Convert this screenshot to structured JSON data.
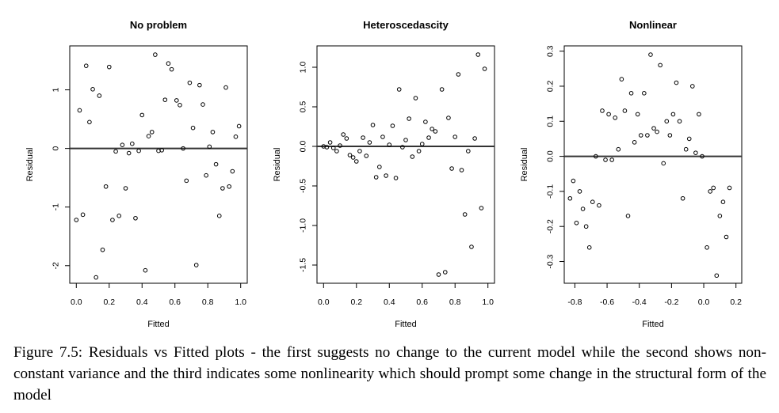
{
  "caption": "Figure 7.5: Residuals vs Fitted plots - the first suggests no change to the current model while the second shows non-constant variance and the third indicates some nonlinearity which should prompt some change in the structural form of the model",
  "chart_data": [
    {
      "type": "scatter",
      "title": "No problem",
      "xlabel": "Fitted",
      "ylabel": "Residual",
      "xlim": [
        -0.04,
        1.04
      ],
      "ylim": [
        -2.3,
        1.75
      ],
      "xticks": [
        0.0,
        0.2,
        0.4,
        0.6,
        0.8,
        1.0
      ],
      "xtick_labels": [
        "0.0",
        "0.2",
        "0.4",
        "0.6",
        "0.8",
        "1.0"
      ],
      "yticks": [
        -2,
        -1,
        0,
        1
      ],
      "ytick_labels": [
        "-2",
        "-1",
        "0",
        "1"
      ],
      "hline": 0,
      "points": [
        [
          0.0,
          -1.22
        ],
        [
          0.02,
          0.65
        ],
        [
          0.04,
          -1.13
        ],
        [
          0.06,
          1.41
        ],
        [
          0.08,
          0.45
        ],
        [
          0.1,
          1.01
        ],
        [
          0.12,
          -2.2
        ],
        [
          0.14,
          0.9
        ],
        [
          0.16,
          -1.73
        ],
        [
          0.18,
          -0.65
        ],
        [
          0.2,
          1.39
        ],
        [
          0.22,
          -1.22
        ],
        [
          0.24,
          -0.05
        ],
        [
          0.26,
          -1.15
        ],
        [
          0.28,
          0.06
        ],
        [
          0.3,
          -0.68
        ],
        [
          0.32,
          -0.08
        ],
        [
          0.34,
          0.08
        ],
        [
          0.36,
          -1.19
        ],
        [
          0.38,
          -0.04
        ],
        [
          0.4,
          0.57
        ],
        [
          0.42,
          -2.08
        ],
        [
          0.44,
          0.21
        ],
        [
          0.46,
          0.28
        ],
        [
          0.48,
          1.6
        ],
        [
          0.5,
          -0.04
        ],
        [
          0.52,
          -0.03
        ],
        [
          0.54,
          0.83
        ],
        [
          0.56,
          1.45
        ],
        [
          0.58,
          1.35
        ],
        [
          0.61,
          0.82
        ],
        [
          0.63,
          0.74
        ],
        [
          0.65,
          0.0
        ],
        [
          0.67,
          -0.55
        ],
        [
          0.69,
          1.12
        ],
        [
          0.71,
          0.35
        ],
        [
          0.73,
          -1.99
        ],
        [
          0.75,
          1.08
        ],
        [
          0.77,
          0.75
        ],
        [
          0.79,
          -0.46
        ],
        [
          0.81,
          0.03
        ],
        [
          0.83,
          0.28
        ],
        [
          0.85,
          -0.27
        ],
        [
          0.87,
          -1.15
        ],
        [
          0.89,
          -0.68
        ],
        [
          0.91,
          1.04
        ],
        [
          0.93,
          -0.65
        ],
        [
          0.95,
          -0.39
        ],
        [
          0.97,
          0.2
        ],
        [
          0.99,
          0.38
        ]
      ]
    },
    {
      "type": "scatter",
      "title": "Heteroscedascity",
      "xlabel": "Fitted",
      "ylabel": "Residual",
      "xlim": [
        -0.04,
        1.04
      ],
      "ylim": [
        -1.73,
        1.27
      ],
      "xticks": [
        0.0,
        0.2,
        0.4,
        0.6,
        0.8,
        1.0
      ],
      "xtick_labels": [
        "0.0",
        "0.2",
        "0.4",
        "0.6",
        "0.8",
        "1.0"
      ],
      "yticks": [
        -1.5,
        -1.0,
        -0.5,
        0.0,
        0.5,
        1.0
      ],
      "ytick_labels": [
        "-1.5",
        "-1.0",
        "-0.5",
        "0.0",
        "0.5",
        "1.0"
      ],
      "hline": 0,
      "points": [
        [
          0.0,
          0.0
        ],
        [
          0.02,
          -0.01
        ],
        [
          0.04,
          0.05
        ],
        [
          0.06,
          -0.02
        ],
        [
          0.08,
          -0.06
        ],
        [
          0.1,
          0.01
        ],
        [
          0.12,
          0.15
        ],
        [
          0.14,
          0.1
        ],
        [
          0.16,
          -0.11
        ],
        [
          0.18,
          -0.14
        ],
        [
          0.2,
          -0.19
        ],
        [
          0.22,
          -0.06
        ],
        [
          0.24,
          0.11
        ],
        [
          0.26,
          -0.12
        ],
        [
          0.28,
          0.05
        ],
        [
          0.3,
          0.27
        ],
        [
          0.32,
          -0.39
        ],
        [
          0.34,
          -0.26
        ],
        [
          0.36,
          0.12
        ],
        [
          0.38,
          -0.37
        ],
        [
          0.4,
          0.02
        ],
        [
          0.42,
          0.26
        ],
        [
          0.44,
          -0.4
        ],
        [
          0.46,
          0.72
        ],
        [
          0.48,
          -0.01
        ],
        [
          0.5,
          0.08
        ],
        [
          0.52,
          0.35
        ],
        [
          0.54,
          -0.13
        ],
        [
          0.56,
          0.61
        ],
        [
          0.58,
          -0.06
        ],
        [
          0.6,
          0.03
        ],
        [
          0.62,
          0.31
        ],
        [
          0.64,
          0.11
        ],
        [
          0.66,
          0.22
        ],
        [
          0.68,
          0.19
        ],
        [
          0.7,
          -1.62
        ],
        [
          0.72,
          0.72
        ],
        [
          0.74,
          -1.59
        ],
        [
          0.76,
          0.36
        ],
        [
          0.78,
          -0.28
        ],
        [
          0.8,
          0.12
        ],
        [
          0.82,
          0.91
        ],
        [
          0.84,
          -0.3
        ],
        [
          0.86,
          -0.86
        ],
        [
          0.88,
          -0.06
        ],
        [
          0.9,
          -1.27
        ],
        [
          0.92,
          0.1
        ],
        [
          0.94,
          1.16
        ],
        [
          0.96,
          -0.78
        ],
        [
          0.98,
          0.98
        ]
      ]
    },
    {
      "type": "scatter",
      "title": "Nonlinear",
      "xlabel": "Fitted",
      "ylabel": "Residual",
      "xlim": [
        -0.866,
        0.236
      ],
      "ylim": [
        -0.362,
        0.315
      ],
      "xticks": [
        -0.8,
        -0.6,
        -0.4,
        -0.2,
        0.0,
        0.2
      ],
      "xtick_labels": [
        "-0.8",
        "-0.6",
        "-0.4",
        "-0.2",
        "0.0",
        "0.2"
      ],
      "yticks": [
        -0.3,
        -0.2,
        -0.1,
        0.0,
        0.1,
        0.2,
        0.3
      ],
      "ytick_labels": [
        "-0.3",
        "-0.2",
        "-0.1",
        "0.0",
        "0.1",
        "0.2",
        "0.3"
      ],
      "hline": 0,
      "points": [
        [
          -0.83,
          -0.12
        ],
        [
          -0.81,
          -0.07
        ],
        [
          -0.79,
          -0.19
        ],
        [
          -0.77,
          -0.1
        ],
        [
          -0.75,
          -0.15
        ],
        [
          -0.73,
          -0.2
        ],
        [
          -0.71,
          -0.26
        ],
        [
          -0.69,
          -0.13
        ],
        [
          -0.67,
          0.0
        ],
        [
          -0.65,
          -0.14
        ],
        [
          -0.63,
          0.13
        ],
        [
          -0.61,
          -0.01
        ],
        [
          -0.59,
          0.12
        ],
        [
          -0.57,
          -0.01
        ],
        [
          -0.55,
          0.11
        ],
        [
          -0.53,
          0.02
        ],
        [
          -0.51,
          0.22
        ],
        [
          -0.49,
          0.13
        ],
        [
          -0.47,
          -0.17
        ],
        [
          -0.45,
          0.18
        ],
        [
          -0.43,
          0.04
        ],
        [
          -0.41,
          0.12
        ],
        [
          -0.39,
          0.06
        ],
        [
          -0.37,
          0.18
        ],
        [
          -0.35,
          0.06
        ],
        [
          -0.33,
          0.29
        ],
        [
          -0.31,
          0.08
        ],
        [
          -0.29,
          0.07
        ],
        [
          -0.27,
          0.26
        ],
        [
          -0.25,
          -0.02
        ],
        [
          -0.23,
          0.1
        ],
        [
          -0.21,
          0.06
        ],
        [
          -0.19,
          0.12
        ],
        [
          -0.17,
          0.21
        ],
        [
          -0.15,
          0.1
        ],
        [
          -0.13,
          -0.12
        ],
        [
          -0.11,
          0.02
        ],
        [
          -0.09,
          0.05
        ],
        [
          -0.07,
          0.2
        ],
        [
          -0.05,
          0.01
        ],
        [
          -0.03,
          0.12
        ],
        [
          -0.01,
          0.0
        ],
        [
          0.02,
          -0.26
        ],
        [
          0.04,
          -0.1
        ],
        [
          0.06,
          -0.09
        ],
        [
          0.08,
          -0.34
        ],
        [
          0.1,
          -0.17
        ],
        [
          0.12,
          -0.13
        ],
        [
          0.14,
          -0.23
        ],
        [
          0.16,
          -0.09
        ]
      ]
    }
  ]
}
